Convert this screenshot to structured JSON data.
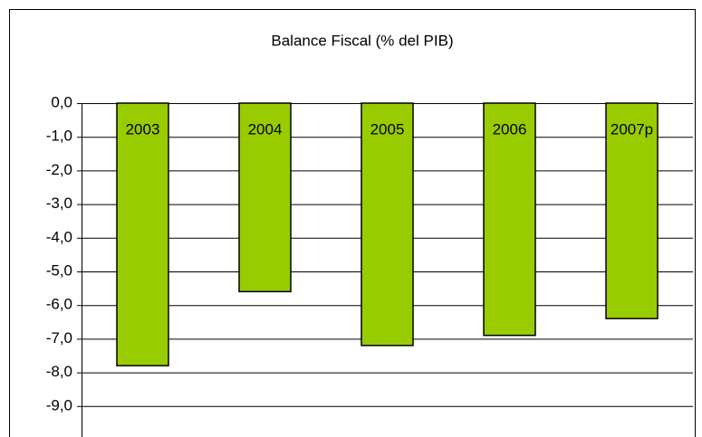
{
  "chart_data": {
    "type": "bar",
    "title": "Balance Fiscal (% del PIB)",
    "categories": [
      "2003",
      "2004",
      "2005",
      "2006",
      "2007p"
    ],
    "values": [
      -7.8,
      -5.6,
      -7.2,
      -6.9,
      -6.4
    ],
    "color": "#99cc00",
    "ylim": [
      -10,
      0
    ],
    "yticks": [
      {
        "value": 0,
        "label": "0,0"
      },
      {
        "value": -1,
        "label": "-1,0"
      },
      {
        "value": -2,
        "label": "-2,0"
      },
      {
        "value": -3,
        "label": "-3,0"
      },
      {
        "value": -4,
        "label": "-4,0"
      },
      {
        "value": -5,
        "label": "-5,0"
      },
      {
        "value": -6,
        "label": "-6,0"
      },
      {
        "value": -7,
        "label": "-7,0"
      },
      {
        "value": -8,
        "label": "-8,0"
      },
      {
        "value": -9,
        "label": "-9,0"
      }
    ],
    "grid": true
  }
}
